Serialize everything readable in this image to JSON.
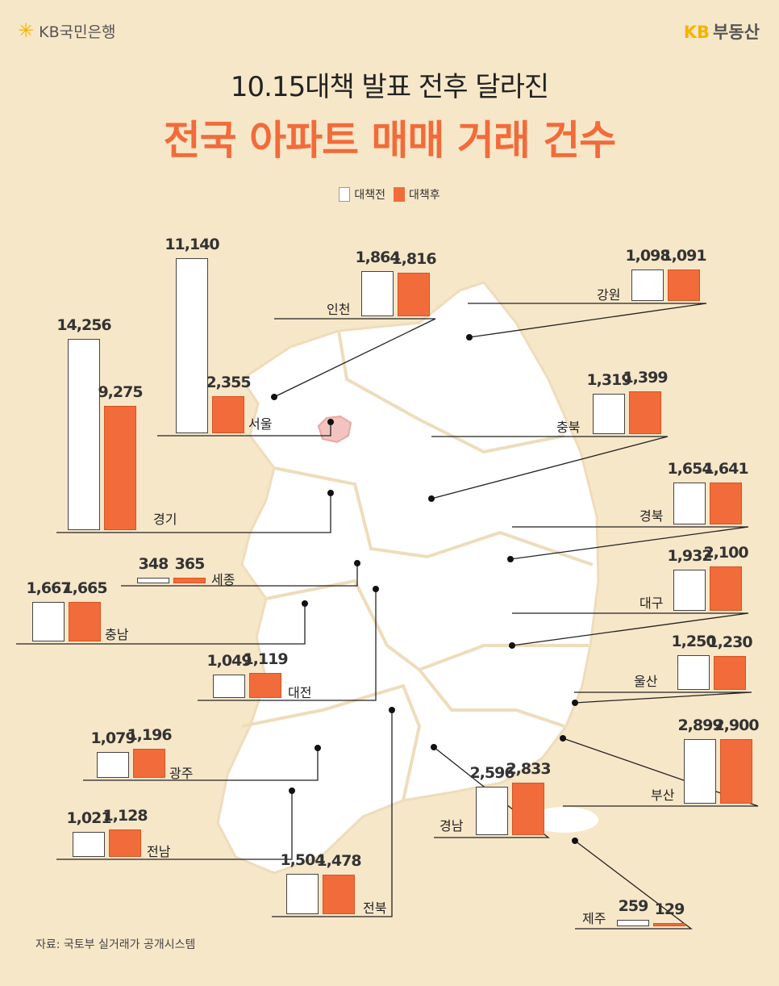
{
  "header": {
    "logo_left": "KB국민은행",
    "logo_right_kb": "KB",
    "logo_right_text": "부동산",
    "subtitle": "10.15대책 발표 전후 달라진",
    "title": "전국 아파트 매매 거래 건수"
  },
  "legend": {
    "before": "대책전",
    "after": "대책후"
  },
  "source": "자료: 국토부 실거래가 공개시스템",
  "colors": {
    "before": "#ffffff",
    "after": "#f26b3a",
    "background": "#f7e7c9"
  },
  "chart_data": {
    "type": "bar",
    "title": "전국 아파트 매매 거래 건수",
    "legend_placement": "top-center",
    "categories": [
      "경기",
      "서울",
      "인천",
      "강원",
      "충북",
      "경북",
      "대구",
      "울산",
      "부산",
      "경남",
      "제주",
      "전북",
      "전남",
      "광주",
      "대전",
      "충남",
      "세종"
    ],
    "series": [
      {
        "name": "대책전",
        "values": [
          14256,
          11140,
          1864,
          1098,
          1319,
          1654,
          1932,
          1250,
          2899,
          2596,
          259,
          1504,
          1021,
          1079,
          1049,
          1667,
          348
        ],
        "labels": [
          "14,256",
          "11,140",
          "1,864",
          "1,098",
          "1,319",
          "1,654",
          "1,932",
          "1,250",
          "2,899",
          "2,596",
          "259",
          "1,504",
          "1,021",
          "1,079",
          "1,049",
          "1,667",
          "348"
        ]
      },
      {
        "name": "대책후",
        "values": [
          9275,
          2355,
          1816,
          1091,
          1399,
          1641,
          2100,
          1230,
          2900,
          2833,
          129,
          1478,
          1128,
          1196,
          1119,
          1665,
          365
        ],
        "labels": [
          "9,275",
          "2,355",
          "1,816",
          "1,091",
          "1,399",
          "1,641",
          "2,100",
          "1,230",
          "2,900",
          "2,833",
          "129",
          "1,478",
          "1,128",
          "1,196",
          "1,119",
          "1,665",
          "365"
        ]
      }
    ]
  }
}
